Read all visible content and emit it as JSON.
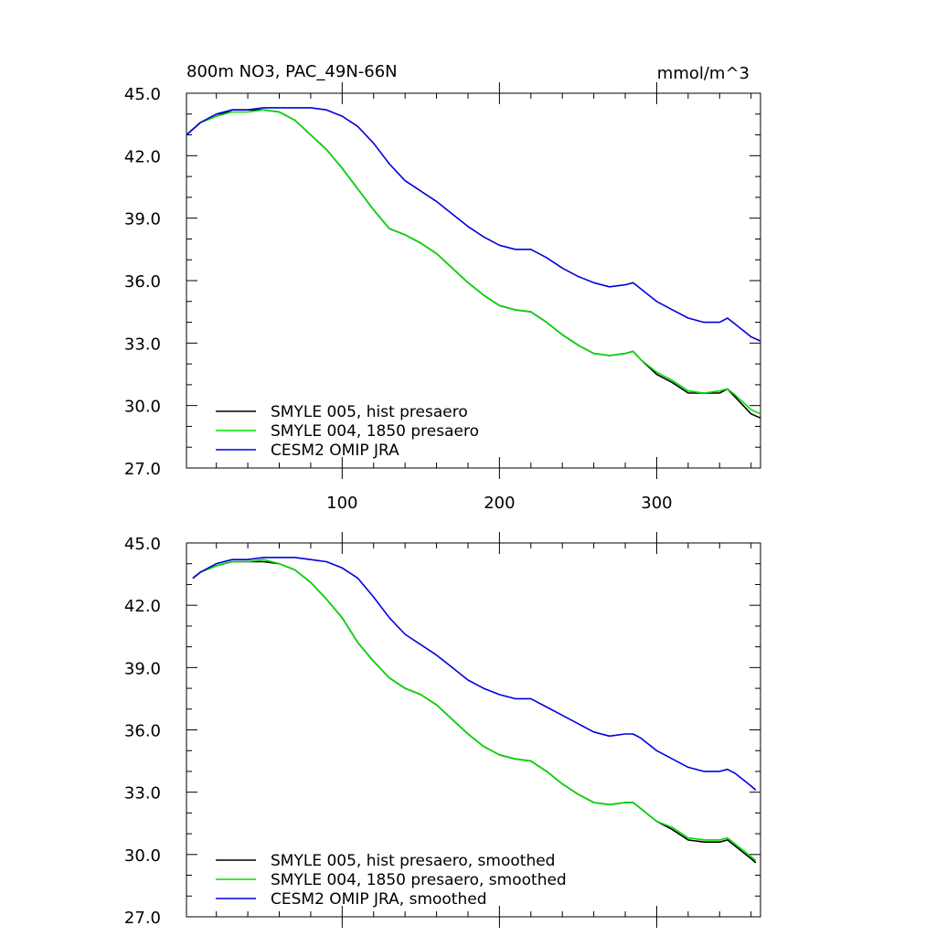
{
  "header": {
    "title": "800m NO3, PAC_49N-66N",
    "units": "mmol/m^3"
  },
  "chart_data": [
    {
      "type": "line",
      "title": "800m NO3, PAC_49N-66N",
      "units": "mmol/m^3",
      "xlim": [
        1,
        366
      ],
      "ylim": [
        27.0,
        45.0
      ],
      "yticks": [
        "45.0",
        "42.0",
        "39.0",
        "36.0",
        "33.0",
        "30.0",
        "27.0"
      ],
      "xticks": [
        "100",
        "200",
        "300"
      ],
      "grid": false,
      "legend_position": "bottom-left",
      "series": [
        {
          "name": "SMYLE 005, hist presaero",
          "color": "#000000",
          "x": [
            1,
            10,
            20,
            30,
            40,
            50,
            60,
            70,
            80,
            90,
            100,
            110,
            120,
            130,
            140,
            150,
            160,
            170,
            180,
            190,
            200,
            210,
            220,
            230,
            240,
            250,
            260,
            270,
            280,
            285,
            290,
            300,
            310,
            320,
            330,
            340,
            345,
            350,
            360,
            366
          ],
          "y": [
            43.0,
            43.6,
            43.9,
            44.2,
            44.2,
            44.2,
            44.1,
            43.7,
            43.0,
            42.3,
            41.4,
            40.4,
            39.4,
            38.5,
            38.2,
            37.8,
            37.3,
            36.6,
            35.9,
            35.3,
            34.8,
            34.6,
            34.5,
            34.0,
            33.4,
            32.9,
            32.5,
            32.4,
            32.5,
            32.6,
            32.2,
            31.5,
            31.1,
            30.6,
            30.6,
            30.6,
            30.8,
            30.4,
            29.6,
            29.4
          ]
        },
        {
          "name": "SMYLE 004, 1850 presaero",
          "color": "#00dd00",
          "x": [
            1,
            10,
            20,
            30,
            40,
            50,
            60,
            70,
            80,
            90,
            100,
            110,
            120,
            130,
            140,
            150,
            160,
            170,
            180,
            190,
            200,
            210,
            220,
            230,
            240,
            250,
            260,
            270,
            280,
            285,
            290,
            300,
            310,
            320,
            330,
            340,
            345,
            350,
            360,
            366
          ],
          "y": [
            43.0,
            43.6,
            43.9,
            44.1,
            44.1,
            44.2,
            44.1,
            43.7,
            43.0,
            42.3,
            41.4,
            40.4,
            39.4,
            38.5,
            38.2,
            37.8,
            37.3,
            36.6,
            35.9,
            35.3,
            34.8,
            34.6,
            34.5,
            34.0,
            33.4,
            32.9,
            32.5,
            32.4,
            32.5,
            32.6,
            32.2,
            31.6,
            31.2,
            30.7,
            30.6,
            30.7,
            30.8,
            30.5,
            29.8,
            29.6
          ]
        },
        {
          "name": "CESM2 OMIP JRA",
          "color": "#0000dd",
          "x": [
            1,
            10,
            20,
            30,
            40,
            50,
            60,
            70,
            80,
            90,
            100,
            110,
            120,
            130,
            140,
            150,
            160,
            170,
            180,
            190,
            200,
            210,
            220,
            230,
            240,
            250,
            260,
            270,
            280,
            285,
            290,
            300,
            310,
            320,
            330,
            340,
            345,
            350,
            360,
            366
          ],
          "y": [
            43.0,
            43.6,
            44.0,
            44.2,
            44.2,
            44.3,
            44.3,
            44.3,
            44.3,
            44.2,
            43.9,
            43.4,
            42.6,
            41.6,
            40.8,
            40.3,
            39.8,
            39.2,
            38.6,
            38.1,
            37.7,
            37.5,
            37.5,
            37.1,
            36.6,
            36.2,
            35.9,
            35.7,
            35.8,
            35.9,
            35.6,
            35.0,
            34.6,
            34.2,
            34.0,
            34.0,
            34.2,
            33.9,
            33.3,
            33.1
          ]
        }
      ]
    },
    {
      "type": "line",
      "xlim": [
        1,
        366
      ],
      "ylim": [
        27.0,
        45.0
      ],
      "yticks": [
        "45.0",
        "42.0",
        "39.0",
        "36.0",
        "33.0",
        "30.0",
        "27.0"
      ],
      "grid": false,
      "legend_position": "bottom-left",
      "series": [
        {
          "name": "SMYLE 005, hist presaero, smoothed",
          "color": "#000000",
          "x": [
            5,
            10,
            20,
            30,
            40,
            50,
            60,
            70,
            80,
            90,
            100,
            110,
            120,
            130,
            140,
            150,
            160,
            170,
            180,
            190,
            200,
            210,
            220,
            230,
            240,
            250,
            260,
            270,
            280,
            285,
            290,
            300,
            310,
            320,
            330,
            340,
            345,
            350,
            360,
            363
          ],
          "y": [
            43.3,
            43.6,
            43.9,
            44.1,
            44.1,
            44.1,
            44.0,
            43.7,
            43.1,
            42.3,
            41.4,
            40.2,
            39.3,
            38.5,
            38.0,
            37.7,
            37.2,
            36.5,
            35.8,
            35.2,
            34.8,
            34.6,
            34.5,
            34.0,
            33.4,
            32.9,
            32.5,
            32.4,
            32.5,
            32.5,
            32.2,
            31.6,
            31.2,
            30.7,
            30.6,
            30.6,
            30.7,
            30.4,
            29.8,
            29.6
          ]
        },
        {
          "name": "SMYLE 004, 1850 presaero, smoothed",
          "color": "#00dd00",
          "x": [
            5,
            10,
            20,
            30,
            40,
            50,
            60,
            70,
            80,
            90,
            100,
            110,
            120,
            130,
            140,
            150,
            160,
            170,
            180,
            190,
            200,
            210,
            220,
            230,
            240,
            250,
            260,
            270,
            280,
            285,
            290,
            300,
            310,
            320,
            330,
            340,
            345,
            350,
            360,
            363
          ],
          "y": [
            43.3,
            43.6,
            43.9,
            44.1,
            44.1,
            44.2,
            44.0,
            43.7,
            43.1,
            42.3,
            41.4,
            40.2,
            39.3,
            38.5,
            38.0,
            37.7,
            37.2,
            36.5,
            35.8,
            35.2,
            34.8,
            34.6,
            34.5,
            34.0,
            33.4,
            32.9,
            32.5,
            32.4,
            32.5,
            32.5,
            32.2,
            31.6,
            31.3,
            30.8,
            30.7,
            30.7,
            30.8,
            30.5,
            29.9,
            29.7
          ]
        },
        {
          "name": "CESM2 OMIP JRA, smoothed",
          "color": "#0000dd",
          "x": [
            5,
            10,
            20,
            30,
            40,
            50,
            60,
            70,
            80,
            90,
            100,
            110,
            120,
            130,
            140,
            150,
            160,
            170,
            180,
            190,
            200,
            210,
            220,
            230,
            240,
            250,
            260,
            270,
            280,
            285,
            290,
            300,
            310,
            320,
            330,
            340,
            345,
            350,
            360,
            363
          ],
          "y": [
            43.3,
            43.6,
            44.0,
            44.2,
            44.2,
            44.3,
            44.3,
            44.3,
            44.2,
            44.1,
            43.8,
            43.3,
            42.4,
            41.4,
            40.6,
            40.1,
            39.6,
            39.0,
            38.4,
            38.0,
            37.7,
            37.5,
            37.5,
            37.1,
            36.7,
            36.3,
            35.9,
            35.7,
            35.8,
            35.8,
            35.6,
            35.0,
            34.6,
            34.2,
            34.0,
            34.0,
            34.1,
            33.9,
            33.3,
            33.1
          ]
        }
      ]
    }
  ]
}
